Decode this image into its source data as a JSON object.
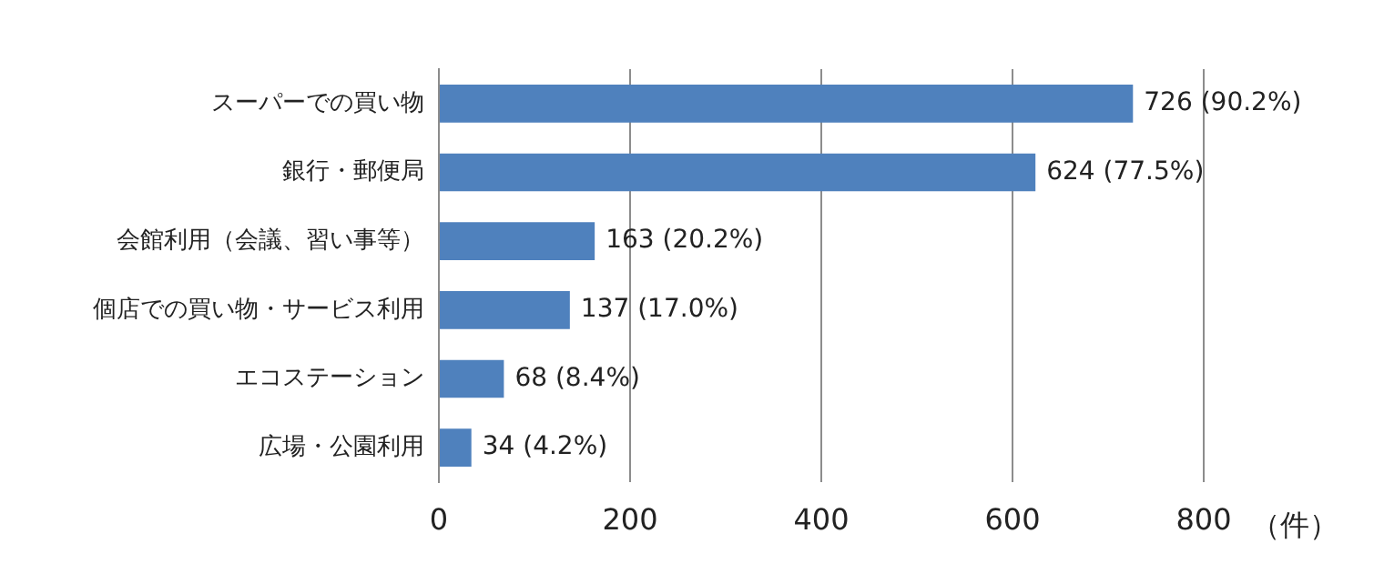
{
  "chart_data": {
    "type": "bar",
    "orientation": "horizontal",
    "categories": [
      "スーパーでの買い物",
      "銀行・郵便局",
      "会館利用（会議、習い事等）",
      "個店での買い物・サービス利用",
      "エコステーション",
      "広場・公園利用"
    ],
    "values": [
      726,
      624,
      163,
      137,
      68,
      34
    ],
    "value_labels": [
      "726 (90.2%)",
      "624 (77.5%)",
      "163 (20.2%)",
      "137 (17.0%)",
      "68 (8.4%)",
      "34 (4.2%)"
    ],
    "color": "#4f81bd",
    "xlabel": "（件）",
    "xlim": [
      0,
      800
    ],
    "xticks": [
      0,
      200,
      400,
      600,
      800
    ],
    "grid": "x"
  }
}
